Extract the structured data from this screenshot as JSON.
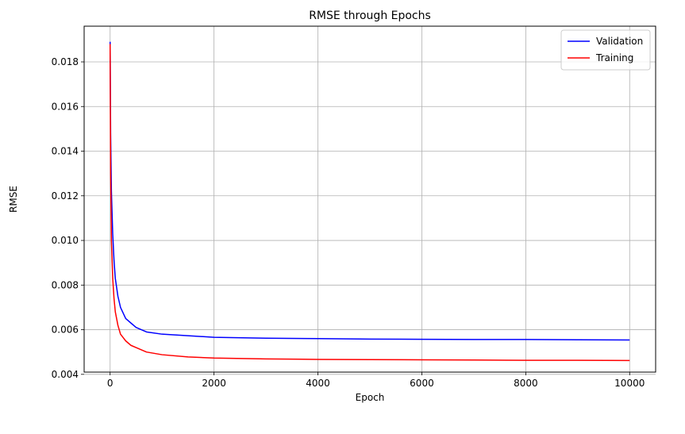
{
  "chart_data": {
    "type": "line",
    "title": "RMSE through Epochs",
    "xlabel": "Epoch",
    "ylabel": "RMSE",
    "xlim": [
      -500,
      10500
    ],
    "ylim": [
      0.0041,
      0.0196
    ],
    "xticks": [
      0,
      2000,
      4000,
      6000,
      8000,
      10000
    ],
    "xtick_labels": [
      "0",
      "2000",
      "4000",
      "6000",
      "8000",
      "10000"
    ],
    "yticks": [
      0.004,
      0.006,
      0.008,
      0.01,
      0.012,
      0.014,
      0.016,
      0.018
    ],
    "ytick_labels": [
      "0.004",
      "0.006",
      "0.008",
      "0.010",
      "0.012",
      "0.014",
      "0.016",
      "0.018"
    ],
    "grid": true,
    "legend_position": "top-right",
    "series": [
      {
        "name": "Validation",
        "color": "#0000ff",
        "x": [
          0,
          10,
          25,
          50,
          75,
          100,
          150,
          200,
          300,
          400,
          500,
          700,
          1000,
          1500,
          2000,
          3000,
          4000,
          5000,
          6000,
          7000,
          8000,
          9000,
          10000
        ],
        "y": [
          0.0189,
          0.0148,
          0.0122,
          0.0103,
          0.0091,
          0.0083,
          0.0075,
          0.007,
          0.0065,
          0.0063,
          0.0061,
          0.0059,
          0.0058,
          0.00573,
          0.00566,
          0.00562,
          0.0056,
          0.00558,
          0.00557,
          0.00556,
          0.00556,
          0.00555,
          0.00554
        ]
      },
      {
        "name": "Training",
        "color": "#ff0000",
        "x": [
          0,
          10,
          25,
          50,
          75,
          100,
          150,
          200,
          300,
          400,
          500,
          700,
          1000,
          1500,
          2000,
          3000,
          4000,
          5000,
          6000,
          7000,
          8000,
          9000,
          10000
        ],
        "y": [
          0.0188,
          0.013,
          0.01,
          0.0083,
          0.0074,
          0.0068,
          0.0062,
          0.0058,
          0.0055,
          0.0053,
          0.0052,
          0.005,
          0.00488,
          0.00478,
          0.00473,
          0.00469,
          0.00467,
          0.00466,
          0.00465,
          0.00464,
          0.00463,
          0.00463,
          0.00462
        ]
      }
    ]
  }
}
